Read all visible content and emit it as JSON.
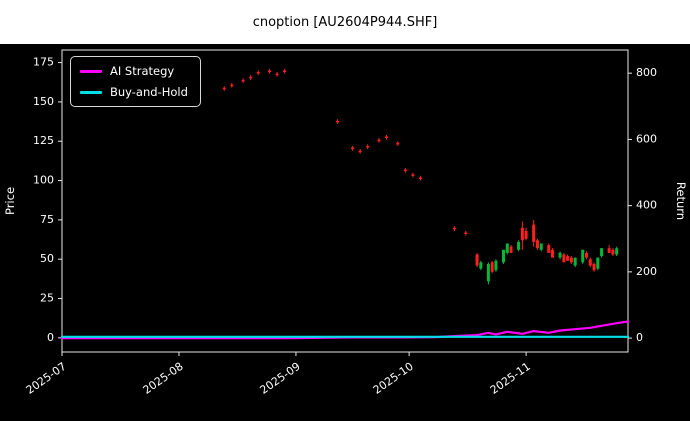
{
  "title": "cnoption [AU2604P944.SHF]",
  "colors": {
    "page_background": "#ffffff",
    "chart_background": "#000000",
    "frame": "#e8e8e8",
    "text": "#ffffff",
    "title_text": "#000000",
    "up": "#00b93b",
    "down": "#ff1f1f",
    "ai_strategy": "#ff00ff",
    "buy_and_hold": "#00e0e6"
  },
  "legend": {
    "items": [
      {
        "label": "AI Strategy",
        "color": "#ff00ff"
      },
      {
        "label": "Buy-and-Hold",
        "color": "#00e0e6"
      }
    ]
  },
  "chart_data": {
    "type": "candlestick+line",
    "title": "cnoption [AU2604P944.SHF]",
    "grid": false,
    "legend_position": "upper-left",
    "x_axis": {
      "start": "2025-07-01",
      "end": "2025-11-28",
      "ticks": [
        {
          "date": "2025-07-01",
          "label": "2025-07"
        },
        {
          "date": "2025-08-01",
          "label": "2025-08"
        },
        {
          "date": "2025-09-01",
          "label": "2025-09"
        },
        {
          "date": "2025-10-01",
          "label": "2025-10"
        },
        {
          "date": "2025-11-01",
          "label": "2025-11"
        }
      ]
    },
    "price_axis": {
      "label": "Price",
      "min": -9,
      "max": 183,
      "ticks": [
        0,
        25,
        50,
        75,
        100,
        125,
        150,
        175
      ]
    },
    "return_axis": {
      "label": "Return",
      "min": -42,
      "max": 870,
      "ticks": [
        0,
        200,
        400,
        600,
        800
      ]
    },
    "candles": [
      {
        "d": "2025-08-13",
        "o": 159,
        "h": 160,
        "l": 157,
        "c": 158
      },
      {
        "d": "2025-08-15",
        "o": 161,
        "h": 162,
        "l": 159,
        "c": 160
      },
      {
        "d": "2025-08-18",
        "o": 164,
        "h": 165,
        "l": 162,
        "c": 163
      },
      {
        "d": "2025-08-20",
        "o": 166,
        "h": 167,
        "l": 164,
        "c": 165
      },
      {
        "d": "2025-08-22",
        "o": 169,
        "h": 170,
        "l": 167,
        "c": 168
      },
      {
        "d": "2025-08-25",
        "o": 170,
        "h": 171,
        "l": 168,
        "c": 169
      },
      {
        "d": "2025-08-27",
        "o": 168,
        "h": 169,
        "l": 166,
        "c": 167
      },
      {
        "d": "2025-08-29",
        "o": 170,
        "h": 171,
        "l": 168,
        "c": 169
      },
      {
        "d": "2025-09-12",
        "o": 138,
        "h": 139,
        "l": 136,
        "c": 137
      },
      {
        "d": "2025-09-16",
        "o": 121,
        "h": 122,
        "l": 119,
        "c": 120
      },
      {
        "d": "2025-09-18",
        "o": 119,
        "h": 120,
        "l": 117,
        "c": 118
      },
      {
        "d": "2025-09-20",
        "o": 122,
        "h": 123,
        "l": 120,
        "c": 121
      },
      {
        "d": "2025-09-23",
        "o": 126,
        "h": 127,
        "l": 124,
        "c": 125
      },
      {
        "d": "2025-09-25",
        "o": 128,
        "h": 129,
        "l": 126,
        "c": 127
      },
      {
        "d": "2025-09-28",
        "o": 124,
        "h": 125,
        "l": 122,
        "c": 123
      },
      {
        "d": "2025-09-30",
        "o": 107,
        "h": 108,
        "l": 105,
        "c": 106
      },
      {
        "d": "2025-10-02",
        "o": 104,
        "h": 105,
        "l": 102,
        "c": 103
      },
      {
        "d": "2025-10-04",
        "o": 102,
        "h": 103,
        "l": 100,
        "c": 101
      },
      {
        "d": "2025-10-13",
        "o": 70,
        "h": 71,
        "l": 68,
        "c": 69
      },
      {
        "d": "2025-10-16",
        "o": 67,
        "h": 68,
        "l": 65,
        "c": 66
      },
      {
        "d": "2025-10-19",
        "o": 53,
        "h": 54,
        "l": 45,
        "c": 46
      },
      {
        "d": "2025-10-20",
        "o": 44,
        "h": 49,
        "l": 43,
        "c": 48
      },
      {
        "d": "2025-10-22",
        "o": 36,
        "h": 48,
        "l": 34,
        "c": 47
      },
      {
        "d": "2025-10-23",
        "o": 48,
        "h": 49,
        "l": 41,
        "c": 42
      },
      {
        "d": "2025-10-24",
        "o": 43,
        "h": 50,
        "l": 42,
        "c": 49
      },
      {
        "d": "2025-10-26",
        "o": 48,
        "h": 56,
        "l": 47,
        "c": 56
      },
      {
        "d": "2025-10-27",
        "o": 54,
        "h": 60,
        "l": 53,
        "c": 60
      },
      {
        "d": "2025-10-28",
        "o": 58,
        "h": 59,
        "l": 54,
        "c": 54
      },
      {
        "d": "2025-10-30",
        "o": 56,
        "h": 62,
        "l": 55,
        "c": 61
      },
      {
        "d": "2025-10-31",
        "o": 70,
        "h": 74,
        "l": 56,
        "c": 62
      },
      {
        "d": "2025-11-01",
        "o": 68,
        "h": 70,
        "l": 62,
        "c": 63
      },
      {
        "d": "2025-11-03",
        "o": 72,
        "h": 75,
        "l": 58,
        "c": 61
      },
      {
        "d": "2025-11-04",
        "o": 62,
        "h": 63,
        "l": 56,
        "c": 57
      },
      {
        "d": "2025-11-05",
        "o": 56,
        "h": 60,
        "l": 55,
        "c": 60
      },
      {
        "d": "2025-11-07",
        "o": 59,
        "h": 60,
        "l": 54,
        "c": 54
      },
      {
        "d": "2025-11-08",
        "o": 56,
        "h": 57,
        "l": 51,
        "c": 51
      },
      {
        "d": "2025-11-10",
        "o": 51,
        "h": 55,
        "l": 50,
        "c": 54
      },
      {
        "d": "2025-11-11",
        "o": 53,
        "h": 54,
        "l": 48,
        "c": 48
      },
      {
        "d": "2025-11-12",
        "o": 52,
        "h": 53,
        "l": 49,
        "c": 49
      },
      {
        "d": "2025-11-13",
        "o": 51,
        "h": 52,
        "l": 47,
        "c": 48
      },
      {
        "d": "2025-11-14",
        "o": 46,
        "h": 51,
        "l": 45,
        "c": 51
      },
      {
        "d": "2025-11-16",
        "o": 48,
        "h": 56,
        "l": 47,
        "c": 56
      },
      {
        "d": "2025-11-17",
        "o": 54,
        "h": 55,
        "l": 50,
        "c": 51
      },
      {
        "d": "2025-11-18",
        "o": 50,
        "h": 51,
        "l": 45,
        "c": 46
      },
      {
        "d": "2025-11-19",
        "o": 47,
        "h": 48,
        "l": 42,
        "c": 43
      },
      {
        "d": "2025-11-20",
        "o": 44,
        "h": 51,
        "l": 43,
        "c": 51
      },
      {
        "d": "2025-11-21",
        "o": 52,
        "h": 57,
        "l": 51,
        "c": 57
      },
      {
        "d": "2025-11-23",
        "o": 57,
        "h": 59,
        "l": 54,
        "c": 54
      },
      {
        "d": "2025-11-24",
        "o": 56,
        "h": 57,
        "l": 52,
        "c": 53
      },
      {
        "d": "2025-11-25",
        "o": 53,
        "h": 58,
        "l": 52,
        "c": 57
      }
    ],
    "series": [
      {
        "name": "AI Strategy",
        "axis": "return",
        "color": "#ff00ff",
        "points": [
          [
            "2025-07-01",
            0
          ],
          [
            "2025-08-31",
            0
          ],
          [
            "2025-09-15",
            2
          ],
          [
            "2025-09-30",
            2
          ],
          [
            "2025-10-08",
            3
          ],
          [
            "2025-10-13",
            6
          ],
          [
            "2025-10-19",
            9
          ],
          [
            "2025-10-22",
            16
          ],
          [
            "2025-10-24",
            11
          ],
          [
            "2025-10-27",
            19
          ],
          [
            "2025-10-31",
            13
          ],
          [
            "2025-11-03",
            21
          ],
          [
            "2025-11-07",
            16
          ],
          [
            "2025-11-10",
            23
          ],
          [
            "2025-11-14",
            27
          ],
          [
            "2025-11-18",
            31
          ],
          [
            "2025-11-21",
            37
          ],
          [
            "2025-11-25",
            45
          ],
          [
            "2025-11-28",
            50
          ]
        ]
      },
      {
        "name": "Buy-and-Hold",
        "axis": "return",
        "color": "#00e0e6",
        "points": [
          [
            "2025-07-01",
            4
          ],
          [
            "2025-11-28",
            4
          ]
        ]
      }
    ]
  }
}
